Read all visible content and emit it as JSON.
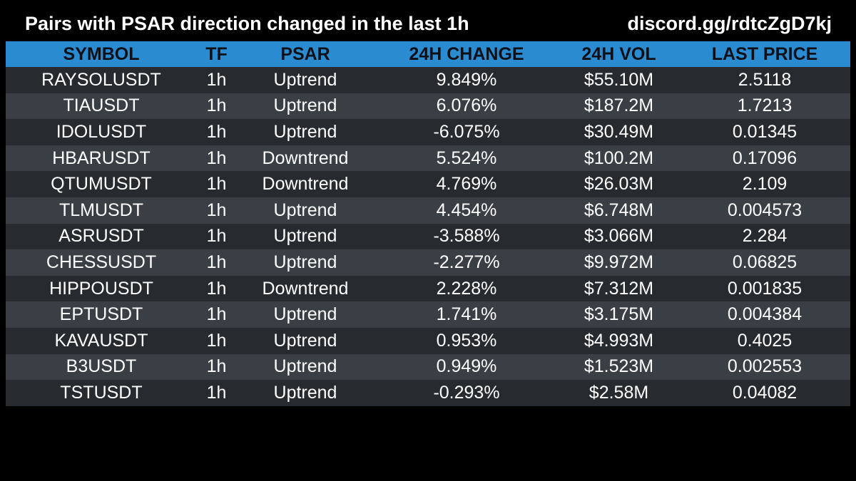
{
  "header": {
    "title": "Pairs with PSAR direction changed in the last 1h",
    "link": "discord.gg/rdtcZgD7kj"
  },
  "colors": {
    "background": "#000000",
    "header_row": "#2a8bd0",
    "row_dark": "#272b30",
    "row_light": "#3a3f45",
    "text": "#ffffff"
  },
  "table": {
    "columns": [
      "SYMBOL",
      "TF",
      "PSAR",
      "24H CHANGE",
      "24H VOL",
      "LAST PRICE"
    ],
    "rows": [
      [
        "RAYSOLUSDT",
        "1h",
        "Uptrend",
        "9.849%",
        "$55.10M",
        "2.5118"
      ],
      [
        "TIAUSDT",
        "1h",
        "Uptrend",
        "6.076%",
        "$187.2M",
        "1.7213"
      ],
      [
        "IDOLUSDT",
        "1h",
        "Uptrend",
        "-6.075%",
        "$30.49M",
        "0.01345"
      ],
      [
        "HBARUSDT",
        "1h",
        "Downtrend",
        "5.524%",
        "$100.2M",
        "0.17096"
      ],
      [
        "QTUMUSDT",
        "1h",
        "Downtrend",
        "4.769%",
        "$26.03M",
        "2.109"
      ],
      [
        "TLMUSDT",
        "1h",
        "Uptrend",
        "4.454%",
        "$6.748M",
        "0.004573"
      ],
      [
        "ASRUSDT",
        "1h",
        "Uptrend",
        "-3.588%",
        "$3.066M",
        "2.284"
      ],
      [
        "CHESSUSDT",
        "1h",
        "Uptrend",
        "-2.277%",
        "$9.972M",
        "0.06825"
      ],
      [
        "HIPPOUSDT",
        "1h",
        "Downtrend",
        "2.228%",
        "$7.312M",
        "0.001835"
      ],
      [
        "EPTUSDT",
        "1h",
        "Uptrend",
        "1.741%",
        "$3.175M",
        "0.004384"
      ],
      [
        "KAVAUSDT",
        "1h",
        "Uptrend",
        "0.953%",
        "$4.993M",
        "0.4025"
      ],
      [
        "B3USDT",
        "1h",
        "Uptrend",
        "0.949%",
        "$1.523M",
        "0.002553"
      ],
      [
        "TSTUSDT",
        "1h",
        "Uptrend",
        "-0.293%",
        "$2.58M",
        "0.04082"
      ]
    ]
  }
}
